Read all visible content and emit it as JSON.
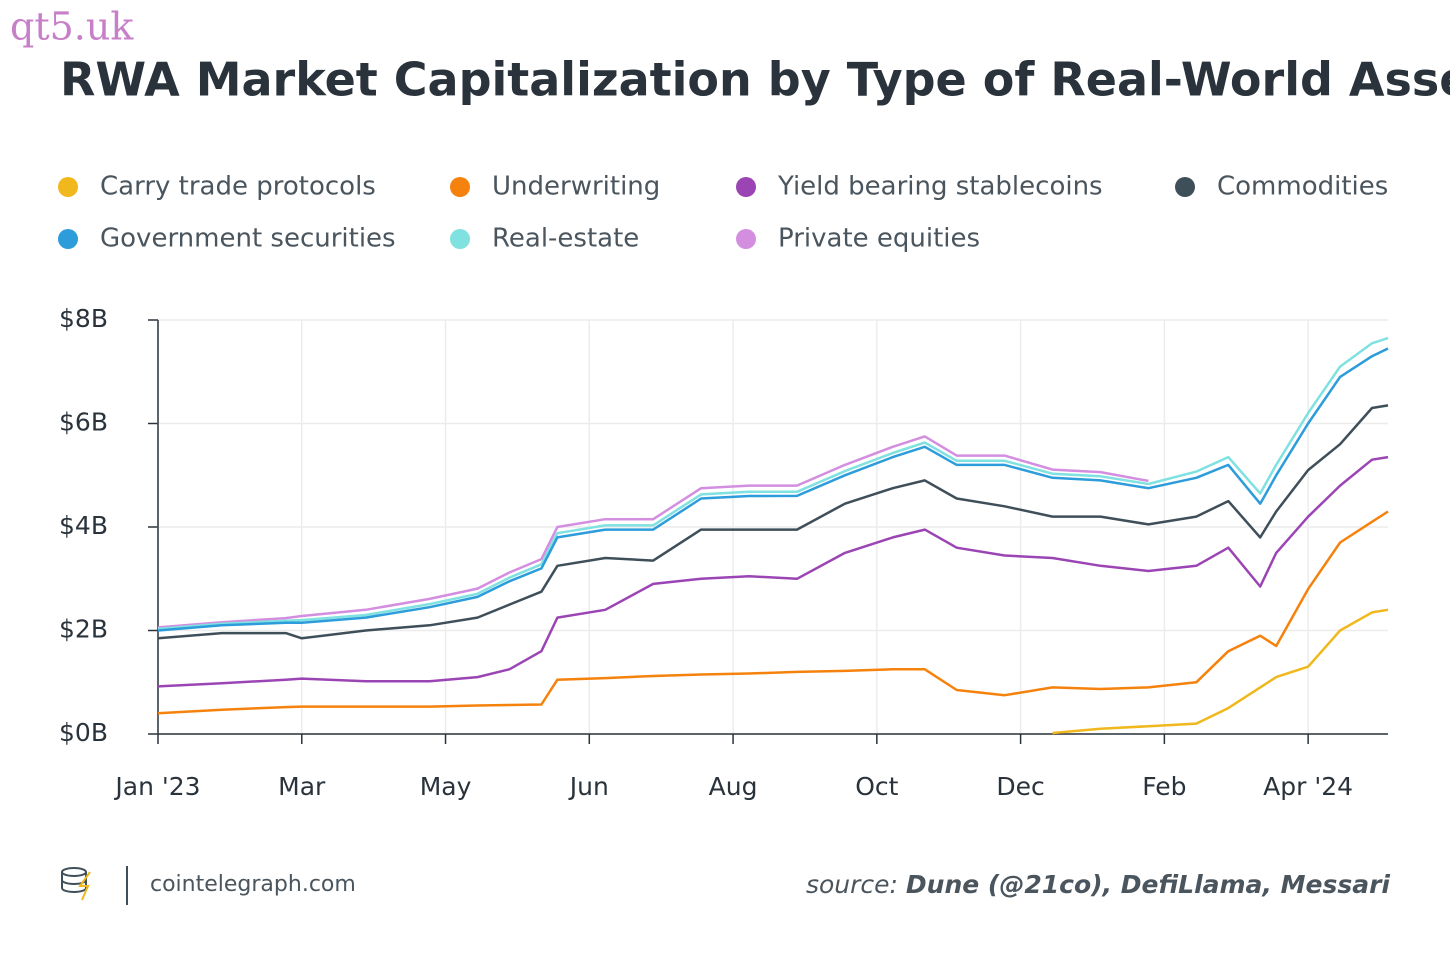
{
  "watermark": "qt5.uk",
  "footer": {
    "site": "cointelegraph.com",
    "source_label": "source:",
    "source_text": "Dune (@21co), DefiLlama, Messari"
  },
  "chart_data": {
    "type": "stacked-line",
    "title": "RWA Market Capitalization by Type of Real-World Asset",
    "x": [
      0,
      4,
      8,
      9,
      13,
      17,
      20,
      22,
      24,
      25,
      28,
      31,
      34,
      37,
      40,
      43,
      46,
      48,
      50,
      53,
      56,
      59,
      62,
      65,
      67,
      69,
      70,
      72,
      74,
      76,
      77
    ],
    "xlim": [
      0,
      77
    ],
    "xticks": [
      {
        "value": 0,
        "label": "Jan '23"
      },
      {
        "value": 9,
        "label": "Mar"
      },
      {
        "value": 18,
        "label": "May"
      },
      {
        "value": 27,
        "label": "Jun"
      },
      {
        "value": 36,
        "label": "Aug"
      },
      {
        "value": 45,
        "label": "Oct"
      },
      {
        "value": 54,
        "label": "Dec"
      },
      {
        "value": 63,
        "label": "Feb"
      },
      {
        "value": 72,
        "label": "Apr '24"
      }
    ],
    "ylim": [
      0,
      8
    ],
    "yticks": [
      {
        "value": 0,
        "label": "$0B"
      },
      {
        "value": 2,
        "label": "$2B"
      },
      {
        "value": 4,
        "label": "$4B"
      },
      {
        "value": 6,
        "label": "$6B"
      },
      {
        "value": 8,
        "label": "$8B"
      }
    ],
    "grid": true,
    "legend": "top",
    "series": [
      {
        "name": "Carry trade protocols",
        "color": "#f0b81c",
        "values": [
          null,
          null,
          null,
          null,
          null,
          null,
          null,
          null,
          null,
          null,
          null,
          null,
          null,
          null,
          null,
          null,
          null,
          null,
          null,
          null,
          0.02,
          0.1,
          0.15,
          0.2,
          0.5,
          0.9,
          1.1,
          1.3,
          2.0,
          2.35,
          2.4
        ]
      },
      {
        "name": "Underwriting",
        "color": "#f5820d",
        "values": [
          0.4,
          0.47,
          0.52,
          0.53,
          0.53,
          0.53,
          0.55,
          0.56,
          0.57,
          1.05,
          1.08,
          1.12,
          1.15,
          1.17,
          1.2,
          1.22,
          1.25,
          1.25,
          0.85,
          0.75,
          0.88,
          0.77,
          0.75,
          0.8,
          1.1,
          1.0,
          0.6,
          1.5,
          1.7,
          1.75,
          1.9
        ]
      },
      {
        "name": "Yield bearing stablecoins",
        "color": "#9b45b5",
        "values": [
          0.52,
          0.51,
          0.53,
          0.54,
          0.49,
          0.49,
          0.55,
          0.69,
          1.03,
          1.2,
          1.32,
          1.78,
          1.85,
          1.88,
          1.8,
          2.28,
          2.55,
          2.7,
          2.75,
          2.7,
          2.5,
          2.38,
          2.25,
          2.25,
          2.0,
          0.95,
          1.8,
          1.4,
          1.1,
          1.2,
          1.05
        ]
      },
      {
        "name": "Commodities",
        "color": "#3f4f5a",
        "values": [
          0.93,
          0.97,
          0.9,
          0.78,
          0.98,
          1.08,
          1.15,
          1.25,
          1.15,
          1.0,
          1.0,
          0.45,
          0.95,
          0.9,
          0.95,
          0.95,
          0.95,
          0.95,
          0.95,
          0.95,
          0.8,
          0.95,
          0.9,
          0.95,
          0.9,
          0.95,
          0.8,
          0.9,
          0.8,
          1.0,
          1.0
        ]
      },
      {
        "name": "Government securities",
        "color": "#2d9cdb",
        "values": [
          0.15,
          0.15,
          0.2,
          0.3,
          0.25,
          0.35,
          0.4,
          0.45,
          0.45,
          0.55,
          0.55,
          0.6,
          0.6,
          0.65,
          0.65,
          0.55,
          0.6,
          0.65,
          0.65,
          0.8,
          0.75,
          0.7,
          0.7,
          0.75,
          0.7,
          0.65,
          0.7,
          0.9,
          1.3,
          1.0,
          1.1
        ]
      },
      {
        "name": "Real-estate",
        "color": "#7fe1e0",
        "values": [
          0.03,
          0.03,
          0.04,
          0.05,
          0.05,
          0.06,
          0.06,
          0.07,
          0.08,
          0.08,
          0.08,
          0.08,
          0.08,
          0.08,
          0.08,
          0.08,
          0.08,
          0.08,
          0.08,
          0.08,
          0.08,
          0.08,
          0.08,
          0.12,
          0.15,
          0.2,
          0.2,
          0.2,
          0.2,
          0.25,
          0.2
        ]
      },
      {
        "name": "Private equities",
        "color": "#d48ee0",
        "values": [
          0.03,
          0.03,
          0.05,
          0.08,
          0.1,
          0.1,
          0.1,
          0.1,
          0.1,
          0.12,
          0.12,
          0.12,
          0.12,
          0.12,
          0.12,
          0.12,
          0.12,
          0.12,
          0.1,
          0.1,
          0.08,
          0.08,
          0.06,
          null,
          null,
          null,
          null,
          null,
          null,
          null,
          null
        ]
      }
    ]
  }
}
